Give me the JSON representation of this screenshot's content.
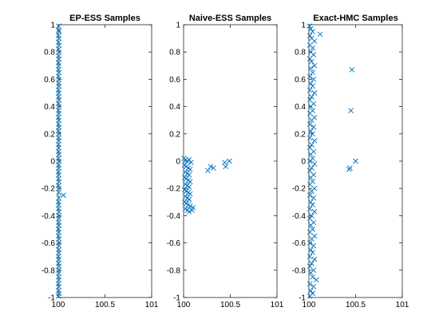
{
  "colors": {
    "marker": "#0072BD",
    "axes": "#262626",
    "background": "#ffffff"
  },
  "chart_data": [
    {
      "type": "scatter",
      "title": "EP-ESS Samples",
      "xlabel": "",
      "ylabel": "",
      "xlim": [
        100,
        101
      ],
      "ylim": [
        -1,
        1
      ],
      "xticks": [
        100,
        100.5,
        101
      ],
      "xtick_labels": [
        "100",
        "100.5",
        "101"
      ],
      "yticks": [
        -1,
        -0.8,
        -0.6,
        -0.4,
        -0.2,
        0,
        0.2,
        0.4,
        0.6,
        0.8,
        1
      ],
      "ytick_labels": [
        "-1",
        "-0.8",
        "-0.6",
        "-0.4",
        "-0.2",
        "0",
        "0.2",
        "0.4",
        "0.6",
        "0.8",
        "1"
      ],
      "grid": false,
      "marker": "x",
      "points": [
        [
          100.003,
          0.99
        ],
        [
          100.004,
          0.96
        ],
        [
          100.008,
          0.95
        ],
        [
          100.002,
          0.92
        ],
        [
          100.006,
          0.9
        ],
        [
          100.003,
          0.87
        ],
        [
          100.007,
          0.85
        ],
        [
          100.002,
          0.82
        ],
        [
          100.005,
          0.8
        ],
        [
          100.004,
          0.77
        ],
        [
          100.006,
          0.75
        ],
        [
          100.002,
          0.72
        ],
        [
          100.005,
          0.7
        ],
        [
          100.003,
          0.67
        ],
        [
          100.007,
          0.65
        ],
        [
          100.002,
          0.62
        ],
        [
          100.005,
          0.6
        ],
        [
          100.004,
          0.57
        ],
        [
          100.006,
          0.55
        ],
        [
          100.002,
          0.52
        ],
        [
          100.005,
          0.5
        ],
        [
          100.003,
          0.47
        ],
        [
          100.007,
          0.45
        ],
        [
          100.002,
          0.42
        ],
        [
          100.005,
          0.4
        ],
        [
          100.004,
          0.37
        ],
        [
          100.006,
          0.35
        ],
        [
          100.002,
          0.32
        ],
        [
          100.005,
          0.3
        ],
        [
          100.003,
          0.27
        ],
        [
          100.007,
          0.25
        ],
        [
          100.002,
          0.22
        ],
        [
          100.005,
          0.2
        ],
        [
          100.004,
          0.17
        ],
        [
          100.006,
          0.15
        ],
        [
          100.002,
          0.12
        ],
        [
          100.005,
          0.1
        ],
        [
          100.003,
          0.07
        ],
        [
          100.007,
          0.05
        ],
        [
          100.002,
          0.02
        ],
        [
          100.005,
          0.0
        ],
        [
          100.004,
          -0.03
        ],
        [
          100.006,
          -0.05
        ],
        [
          100.002,
          -0.08
        ],
        [
          100.005,
          -0.1
        ],
        [
          100.003,
          -0.13
        ],
        [
          100.007,
          -0.15
        ],
        [
          100.002,
          -0.18
        ],
        [
          100.005,
          -0.2
        ],
        [
          100.004,
          -0.23
        ],
        [
          100.055,
          -0.25
        ],
        [
          100.006,
          -0.27
        ],
        [
          100.002,
          -0.3
        ],
        [
          100.005,
          -0.32
        ],
        [
          100.003,
          -0.35
        ],
        [
          100.007,
          -0.37
        ],
        [
          100.002,
          -0.4
        ],
        [
          100.005,
          -0.42
        ],
        [
          100.004,
          -0.45
        ],
        [
          100.006,
          -0.47
        ],
        [
          100.002,
          -0.5
        ],
        [
          100.005,
          -0.52
        ],
        [
          100.003,
          -0.55
        ],
        [
          100.007,
          -0.57
        ],
        [
          100.002,
          -0.6
        ],
        [
          100.005,
          -0.62
        ],
        [
          100.004,
          -0.65
        ],
        [
          100.006,
          -0.67
        ],
        [
          100.002,
          -0.7
        ],
        [
          100.005,
          -0.72
        ],
        [
          100.003,
          -0.75
        ],
        [
          100.007,
          -0.77
        ],
        [
          100.002,
          -0.8
        ],
        [
          100.005,
          -0.82
        ],
        [
          100.004,
          -0.85
        ],
        [
          100.006,
          -0.87
        ],
        [
          100.002,
          -0.9
        ],
        [
          100.005,
          -0.92
        ],
        [
          100.003,
          -0.95
        ],
        [
          100.007,
          -0.97
        ],
        [
          100.002,
          -0.99
        ]
      ]
    },
    {
      "type": "scatter",
      "title": "Naive-ESS Samples",
      "xlabel": "",
      "ylabel": "",
      "xlim": [
        100,
        101
      ],
      "ylim": [
        -1,
        1
      ],
      "xticks": [
        100,
        100.5,
        101
      ],
      "xtick_labels": [
        "100",
        "100.5",
        "101"
      ],
      "yticks": [
        -1,
        -0.8,
        -0.6,
        -0.4,
        -0.2,
        0,
        0.2,
        0.4,
        0.6,
        0.8,
        1
      ],
      "ytick_labels": [
        "-1",
        "-0.8",
        "-0.6",
        "-0.4",
        "-0.2",
        "0",
        "0.2",
        "0.4",
        "0.6",
        "0.8",
        "1"
      ],
      "grid": false,
      "marker": "x",
      "points": [
        [
          100.005,
          0.02
        ],
        [
          100.02,
          0.01
        ],
        [
          100.04,
          0.0
        ],
        [
          100.06,
          0.01
        ],
        [
          100.08,
          -0.01
        ],
        [
          100.01,
          -0.03
        ],
        [
          100.03,
          -0.04
        ],
        [
          100.05,
          -0.05
        ],
        [
          100.07,
          -0.06
        ],
        [
          100.02,
          -0.08
        ],
        [
          100.04,
          -0.09
        ],
        [
          100.06,
          -0.1
        ],
        [
          100.01,
          -0.12
        ],
        [
          100.03,
          -0.13
        ],
        [
          100.05,
          -0.14
        ],
        [
          100.07,
          -0.15
        ],
        [
          100.02,
          -0.17
        ],
        [
          100.04,
          -0.18
        ],
        [
          100.06,
          -0.19
        ],
        [
          100.01,
          -0.21
        ],
        [
          100.03,
          -0.22
        ],
        [
          100.05,
          -0.23
        ],
        [
          100.07,
          -0.24
        ],
        [
          100.02,
          -0.26
        ],
        [
          100.04,
          -0.27
        ],
        [
          100.06,
          -0.28
        ],
        [
          100.01,
          -0.3
        ],
        [
          100.03,
          -0.31
        ],
        [
          100.05,
          -0.32
        ],
        [
          100.07,
          -0.33
        ],
        [
          100.02,
          -0.35
        ],
        [
          100.04,
          -0.36
        ],
        [
          100.06,
          -0.37
        ],
        [
          100.09,
          -0.36
        ],
        [
          100.1,
          -0.34
        ],
        [
          100.26,
          -0.07
        ],
        [
          100.29,
          -0.04
        ],
        [
          100.32,
          -0.05
        ],
        [
          100.44,
          -0.01
        ],
        [
          100.45,
          -0.04
        ],
        [
          100.49,
          0.0
        ]
      ]
    },
    {
      "type": "scatter",
      "title": "Exact-HMC Samples",
      "xlabel": "",
      "ylabel": "",
      "xlim": [
        100,
        101
      ],
      "ylim": [
        -1,
        1
      ],
      "xticks": [
        100,
        100.5,
        101
      ],
      "xtick_labels": [
        "100",
        "100.5",
        "101"
      ],
      "yticks": [
        -1,
        -0.8,
        -0.6,
        -0.4,
        -0.2,
        0,
        0.2,
        0.4,
        0.6,
        0.8,
        1
      ],
      "ytick_labels": [
        "-1",
        "-0.8",
        "-0.6",
        "-0.4",
        "-0.2",
        "0",
        "0.2",
        "0.4",
        "0.6",
        "0.8",
        "1"
      ],
      "grid": false,
      "marker": "x",
      "points": [
        [
          100.005,
          0.99
        ],
        [
          100.02,
          0.97
        ],
        [
          100.04,
          0.95
        ],
        [
          100.01,
          0.92
        ],
        [
          100.12,
          0.93
        ],
        [
          100.03,
          0.9
        ],
        [
          100.06,
          0.88
        ],
        [
          100.01,
          0.85
        ],
        [
          100.04,
          0.83
        ],
        [
          100.02,
          0.8
        ],
        [
          100.05,
          0.78
        ],
        [
          100.01,
          0.75
        ],
        [
          100.03,
          0.73
        ],
        [
          100.06,
          0.7
        ],
        [
          100.02,
          0.68
        ],
        [
          100.46,
          0.67
        ],
        [
          100.04,
          0.65
        ],
        [
          100.01,
          0.62
        ],
        [
          100.05,
          0.6
        ],
        [
          100.02,
          0.57
        ],
        [
          100.04,
          0.55
        ],
        [
          100.01,
          0.52
        ],
        [
          100.06,
          0.5
        ],
        [
          100.03,
          0.47
        ],
        [
          100.01,
          0.45
        ],
        [
          100.05,
          0.42
        ],
        [
          100.02,
          0.4
        ],
        [
          100.45,
          0.37
        ],
        [
          100.04,
          0.37
        ],
        [
          100.01,
          0.35
        ],
        [
          100.06,
          0.32
        ],
        [
          100.03,
          0.3
        ],
        [
          100.01,
          0.27
        ],
        [
          100.05,
          0.25
        ],
        [
          100.02,
          0.22
        ],
        [
          100.04,
          0.2
        ],
        [
          100.01,
          0.17
        ],
        [
          100.06,
          0.15
        ],
        [
          100.03,
          0.12
        ],
        [
          100.01,
          0.1
        ],
        [
          100.05,
          0.07
        ],
        [
          100.02,
          0.05
        ],
        [
          100.04,
          0.02
        ],
        [
          100.01,
          0.0
        ],
        [
          100.5,
          0.0
        ],
        [
          100.06,
          -0.02
        ],
        [
          100.03,
          -0.05
        ],
        [
          100.44,
          -0.05
        ],
        [
          100.43,
          -0.06
        ],
        [
          100.01,
          -0.07
        ],
        [
          100.05,
          -0.1
        ],
        [
          100.02,
          -0.12
        ],
        [
          100.04,
          -0.15
        ],
        [
          100.01,
          -0.17
        ],
        [
          100.06,
          -0.2
        ],
        [
          100.03,
          -0.22
        ],
        [
          100.01,
          -0.25
        ],
        [
          100.05,
          -0.27
        ],
        [
          100.02,
          -0.3
        ],
        [
          100.04,
          -0.32
        ],
        [
          100.01,
          -0.35
        ],
        [
          100.06,
          -0.37
        ],
        [
          100.03,
          -0.4
        ],
        [
          100.01,
          -0.42
        ],
        [
          100.05,
          -0.45
        ],
        [
          100.02,
          -0.47
        ],
        [
          100.04,
          -0.5
        ],
        [
          100.01,
          -0.52
        ],
        [
          100.06,
          -0.55
        ],
        [
          100.03,
          -0.57
        ],
        [
          100.01,
          -0.6
        ],
        [
          100.05,
          -0.62
        ],
        [
          100.02,
          -0.65
        ],
        [
          100.04,
          -0.67
        ],
        [
          100.01,
          -0.7
        ],
        [
          100.06,
          -0.72
        ],
        [
          100.03,
          -0.75
        ],
        [
          100.01,
          -0.77
        ],
        [
          100.05,
          -0.8
        ],
        [
          100.02,
          -0.82
        ],
        [
          100.04,
          -0.85
        ],
        [
          100.08,
          -0.87
        ],
        [
          100.01,
          -0.9
        ],
        [
          100.05,
          -0.92
        ],
        [
          100.02,
          -0.95
        ],
        [
          100.04,
          -0.97
        ],
        [
          100.01,
          -0.99
        ]
      ]
    }
  ]
}
